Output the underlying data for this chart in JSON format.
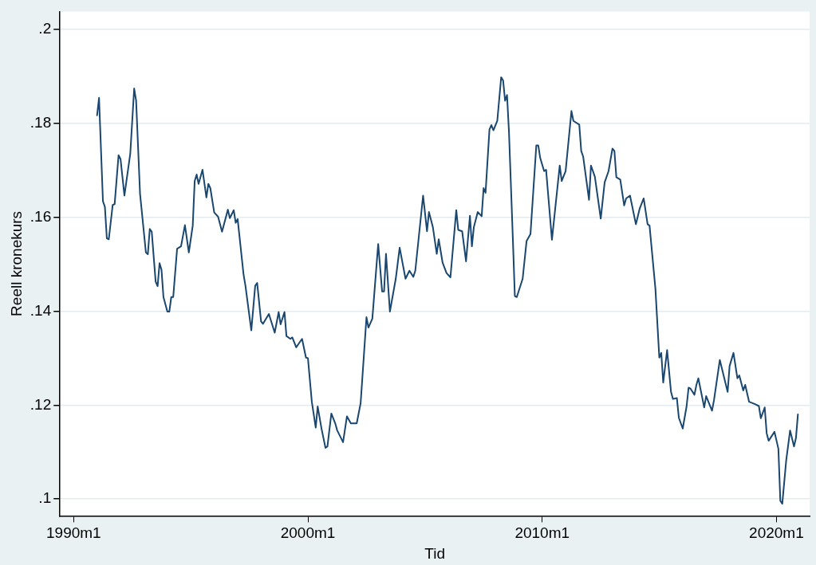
{
  "chart_data": {
    "type": "line",
    "xlabel": "Tid",
    "ylabel": "Reell kronekurs",
    "xlim": [
      "1989-06",
      "2021-06"
    ],
    "ylim": [
      0.0964,
      0.2038
    ],
    "xticks": [
      {
        "value": "1990-01",
        "label": "1990m1"
      },
      {
        "value": "2000-01",
        "label": "2000m1"
      },
      {
        "value": "2010-01",
        "label": "2010m1"
      },
      {
        "value": "2020-01",
        "label": "2020m1"
      }
    ],
    "yticks": [
      {
        "value": 0.1,
        "label": ".1"
      },
      {
        "value": 0.12,
        "label": ".12"
      },
      {
        "value": 0.14,
        "label": ".14"
      },
      {
        "value": 0.16,
        "label": ".16"
      },
      {
        "value": 0.18,
        "label": ".18"
      },
      {
        "value": 0.2,
        "label": ".2"
      }
    ],
    "grid": "y",
    "marker": "none",
    "line_style": "solid",
    "legend": false,
    "series": [
      {
        "color": "#1a476f",
        "x": [
          "1991-01",
          "1991-02",
          "1991-04",
          "1991-05",
          "1991-06",
          "1991-07",
          "1991-09",
          "1991-10",
          "1991-12",
          "1992-01",
          "1992-03",
          "1992-06",
          "1992-08",
          "1992-09",
          "1992-11",
          "1993-02",
          "1993-03",
          "1993-04",
          "1993-05",
          "1993-07",
          "1993-08",
          "1993-09",
          "1993-10",
          "1993-11",
          "1994-01",
          "1994-02",
          "1994-03",
          "1994-04",
          "1994-06",
          "1994-08",
          "1994-10",
          "1994-12",
          "1995-02",
          "1995-03",
          "1995-04",
          "1995-05",
          "1995-07",
          "1995-09",
          "1995-10",
          "1995-11",
          "1996-01",
          "1996-03",
          "1996-05",
          "1996-08",
          "1996-09",
          "1996-11",
          "1996-12",
          "1997-01",
          "1997-04",
          "1997-05",
          "1997-08",
          "1997-10",
          "1997-11",
          "1998-01",
          "1998-02",
          "1998-05",
          "1998-08",
          "1998-10",
          "1998-11",
          "1999-01",
          "1999-02",
          "1999-04",
          "1999-05",
          "1999-07",
          "1999-08",
          "1999-10",
          "1999-12",
          "2000-01",
          "2000-03",
          "2000-05",
          "2000-06",
          "2000-08",
          "2000-10",
          "2000-11",
          "2001-01",
          "2001-03",
          "2001-04",
          "2001-07",
          "2001-09",
          "2001-11",
          "2002-02",
          "2002-04",
          "2002-07",
          "2002-08",
          "2002-10",
          "2003-01",
          "2003-03",
          "2003-04",
          "2003-05",
          "2003-07",
          "2003-10",
          "2003-12",
          "2004-03",
          "2004-05",
          "2004-07",
          "2004-08",
          "2004-12",
          "2005-02",
          "2005-03",
          "2005-05",
          "2005-07",
          "2005-08",
          "2005-10",
          "2005-12",
          "2006-02",
          "2006-05",
          "2006-06",
          "2006-08",
          "2006-10",
          "2006-12",
          "2007-01",
          "2007-02",
          "2007-04",
          "2007-06",
          "2007-07",
          "2007-08",
          "2007-10",
          "2007-11",
          "2007-12",
          "2008-02",
          "2008-04",
          "2008-05",
          "2008-06",
          "2008-07",
          "2008-08",
          "2008-10",
          "2008-11",
          "2008-12",
          "2009-03",
          "2009-05",
          "2009-07",
          "2009-10",
          "2009-11",
          "2009-12",
          "2010-02",
          "2010-03",
          "2010-06",
          "2010-10",
          "2010-11",
          "2011-01",
          "2011-04",
          "2011-05",
          "2011-08",
          "2011-09",
          "2011-10",
          "2012-01",
          "2012-02",
          "2012-04",
          "2012-07",
          "2012-09",
          "2012-11",
          "2013-01",
          "2013-02",
          "2013-03",
          "2013-05",
          "2013-07",
          "2013-08",
          "2013-10",
          "2014-01",
          "2014-03",
          "2014-05",
          "2014-07",
          "2014-08",
          "2014-11",
          "2015-01",
          "2015-02",
          "2015-03",
          "2015-05",
          "2015-07",
          "2015-08",
          "2015-10",
          "2015-11",
          "2016-01",
          "2016-03",
          "2016-04",
          "2016-05",
          "2016-07",
          "2016-08",
          "2016-09",
          "2016-12",
          "2017-01",
          "2017-04",
          "2017-05",
          "2017-08",
          "2017-12",
          "2018-01",
          "2018-03",
          "2018-05",
          "2018-06",
          "2018-08",
          "2018-09",
          "2018-11",
          "2019-02",
          "2019-04",
          "2019-05",
          "2019-07",
          "2019-08",
          "2019-09",
          "2019-12",
          "2020-02",
          "2020-03",
          "2020-04",
          "2020-06",
          "2020-08",
          "2020-10",
          "2020-11",
          "2020-12"
        ],
        "values": [
          0.1817,
          0.1854,
          0.1634,
          0.1622,
          0.1555,
          0.1553,
          0.1626,
          0.1628,
          0.1732,
          0.1724,
          0.1646,
          0.1735,
          0.1874,
          0.1848,
          0.165,
          0.1525,
          0.1521,
          0.1575,
          0.1569,
          0.1463,
          0.1453,
          0.1502,
          0.1488,
          0.143,
          0.1399,
          0.1399,
          0.143,
          0.143,
          0.1533,
          0.1538,
          0.1583,
          0.1525,
          0.1582,
          0.1677,
          0.1691,
          0.1671,
          0.1701,
          0.1642,
          0.1671,
          0.1662,
          0.161,
          0.1601,
          0.1569,
          0.1616,
          0.1598,
          0.1615,
          0.1588,
          0.1596,
          0.1479,
          0.1454,
          0.1359,
          0.1454,
          0.146,
          0.1378,
          0.1373,
          0.1394,
          0.1354,
          0.1398,
          0.1372,
          0.1398,
          0.1347,
          0.1341,
          0.1344,
          0.1323,
          0.1329,
          0.1341,
          0.1301,
          0.13,
          0.1207,
          0.1152,
          0.1197,
          0.1149,
          0.1109,
          0.1112,
          0.1182,
          0.1161,
          0.1146,
          0.1121,
          0.1176,
          0.1161,
          0.1161,
          0.1204,
          0.1387,
          0.1365,
          0.1384,
          0.1543,
          0.1442,
          0.1442,
          0.1522,
          0.1399,
          0.1469,
          0.1535,
          0.1469,
          0.1486,
          0.1473,
          0.1486,
          0.1646,
          0.157,
          0.1611,
          0.1579,
          0.1522,
          0.1553,
          0.1503,
          0.1481,
          0.1472,
          0.1615,
          0.1573,
          0.157,
          0.1506,
          0.1603,
          0.1538,
          0.1579,
          0.1611,
          0.1602,
          0.1662,
          0.1652,
          0.1787,
          0.1796,
          0.1785,
          0.1805,
          0.1898,
          0.1891,
          0.1848,
          0.186,
          0.1781,
          0.1552,
          0.1432,
          0.143,
          0.1469,
          0.1549,
          0.1564,
          0.1753,
          0.1753,
          0.1726,
          0.1698,
          0.1701,
          0.1552,
          0.171,
          0.1677,
          0.1698,
          0.1826,
          0.1805,
          0.1797,
          0.1741,
          0.1729,
          0.1637,
          0.171,
          0.1686,
          0.1597,
          0.1674,
          0.1698,
          0.1746,
          0.1741,
          0.1685,
          0.168,
          0.1625,
          0.164,
          0.1646,
          0.1585,
          0.1619,
          0.164,
          0.1585,
          0.1582,
          0.1448,
          0.1301,
          0.1311,
          0.1248,
          0.1317,
          0.1228,
          0.1213,
          0.1215,
          0.1173,
          0.115,
          0.1198,
          0.1237,
          0.1235,
          0.1222,
          0.1243,
          0.1257,
          0.1195,
          0.1219,
          0.1188,
          0.121,
          0.1296,
          0.1228,
          0.1283,
          0.1311,
          0.1257,
          0.1263,
          0.1231,
          0.1243,
          0.1207,
          0.1202,
          0.1198,
          0.1172,
          0.1195,
          0.114,
          0.1124,
          0.1143,
          0.1107,
          0.0996,
          0.099,
          0.1082,
          0.1146,
          0.1112,
          0.113,
          0.118
        ]
      }
    ]
  }
}
